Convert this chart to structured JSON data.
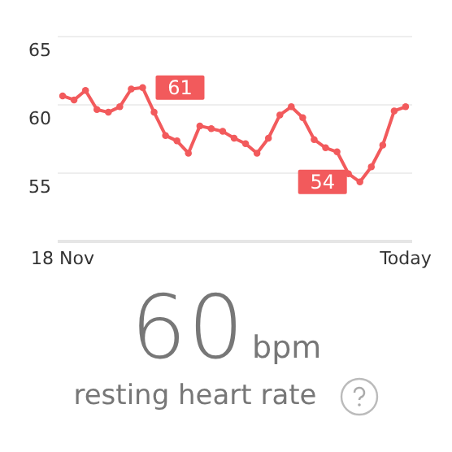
{
  "chart_data": {
    "type": "line",
    "categories": [
      "18 Nov",
      null,
      null,
      null,
      null,
      null,
      null,
      null,
      null,
      null,
      null,
      null,
      null,
      null,
      null,
      null,
      null,
      null,
      null,
      null,
      null,
      null,
      null,
      null,
      null,
      null,
      null,
      null,
      null,
      null,
      "Today"
    ],
    "series": [
      {
        "color": "#f25a5c",
        "values": [
          60.6,
          60.3,
          61.0,
          59.6,
          59.4,
          59.8,
          61.1,
          61.2,
          59.4,
          57.7,
          57.3,
          56.4,
          58.4,
          58.2,
          58.0,
          57.5,
          57.1,
          56.4,
          57.5,
          59.2,
          59.8,
          59.0,
          57.4,
          56.8,
          56.5,
          54.9,
          54.3,
          55.4,
          57.0,
          59.5,
          59.8
        ],
        "value_labels": [
          null,
          null,
          null,
          null,
          null,
          null,
          null,
          "61",
          null,
          null,
          null,
          null,
          null,
          null,
          null,
          null,
          null,
          null,
          null,
          null,
          null,
          null,
          null,
          null,
          null,
          null,
          "54",
          null,
          null,
          null,
          null
        ]
      }
    ],
    "ylim": [
      50,
      65
    ],
    "yticks": [
      55,
      60,
      65
    ],
    "grid": "y",
    "marker": "circle",
    "line_style": "solid",
    "annotations": [
      "60",
      "bpm",
      "resting heart rate"
    ]
  }
}
